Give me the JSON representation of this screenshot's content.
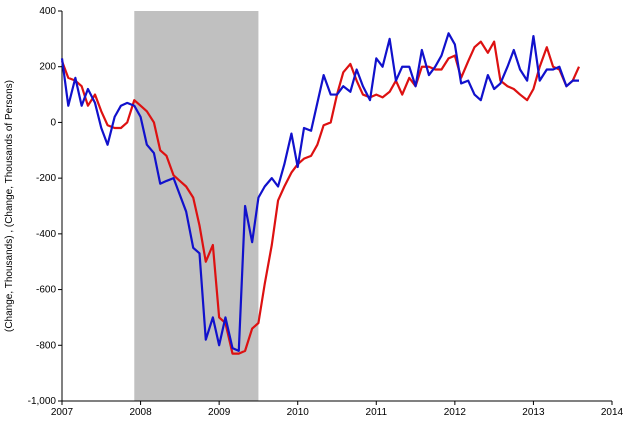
{
  "chart_data": {
    "type": "line",
    "ylabel": "(Change, Thousands) , (Change, Thousands of Persons)",
    "xlim": [
      2007,
      2014
    ],
    "xticks": [
      2007,
      2008,
      2009,
      2010,
      2011,
      2012,
      2013,
      2014
    ],
    "ylim": [
      -1000,
      400
    ],
    "yticks": [
      {
        "value": -1000,
        "label": "-1,000"
      },
      -800,
      -600,
      -400,
      -200,
      0,
      200,
      400
    ],
    "shading": [
      [
        2007.92,
        2009.5
      ]
    ],
    "shading_color": "#c0c0c0",
    "x": [
      2007.0,
      2007.08,
      2007.17,
      2007.25,
      2007.33,
      2007.42,
      2007.5,
      2007.58,
      2007.67,
      2007.75,
      2007.83,
      2007.92,
      2008.0,
      2008.08,
      2008.17,
      2008.25,
      2008.33,
      2008.42,
      2008.5,
      2008.58,
      2008.67,
      2008.75,
      2008.83,
      2008.92,
      2009.0,
      2009.08,
      2009.17,
      2009.25,
      2009.33,
      2009.42,
      2009.5,
      2009.58,
      2009.67,
      2009.75,
      2009.83,
      2009.92,
      2010.0,
      2010.08,
      2010.17,
      2010.25,
      2010.33,
      2010.42,
      2010.5,
      2010.58,
      2010.67,
      2010.75,
      2010.83,
      2010.92,
      2011.0,
      2011.08,
      2011.17,
      2011.25,
      2011.33,
      2011.42,
      2011.5,
      2011.58,
      2011.67,
      2011.75,
      2011.83,
      2011.92,
      2012.0,
      2012.08,
      2012.17,
      2012.25,
      2012.33,
      2012.42,
      2012.5,
      2012.58,
      2012.67,
      2012.75,
      2012.83,
      2012.92,
      2013.0,
      2013.08,
      2013.17,
      2013.25,
      2013.33,
      2013.42,
      2013.5,
      2013.58
    ],
    "series": [
      {
        "color": "#dd1111",
        "values": [
          220,
          160,
          150,
          130,
          60,
          100,
          40,
          -10,
          -20,
          -20,
          0,
          80,
          60,
          40,
          0,
          -100,
          -120,
          -190,
          -210,
          -230,
          -270,
          -370,
          -500,
          -440,
          -700,
          -720,
          -830,
          -830,
          -820,
          -740,
          -720,
          -580,
          -440,
          -280,
          -230,
          -180,
          -150,
          -130,
          -120,
          -80,
          -10,
          0,
          100,
          180,
          210,
          150,
          100,
          90,
          100,
          90,
          110,
          150,
          100,
          160,
          130,
          200,
          200,
          190,
          190,
          230,
          240,
          160,
          220,
          270,
          290,
          250,
          290,
          150,
          130,
          120,
          100,
          80,
          120,
          200,
          270,
          200,
          190,
          130,
          150,
          200
        ]
      },
      {
        "color": "#1111cc",
        "values": [
          230,
          60,
          160,
          60,
          120,
          70,
          -20,
          -80,
          20,
          60,
          70,
          60,
          20,
          -80,
          -110,
          -220,
          -210,
          -200,
          -260,
          -320,
          -450,
          -470,
          -780,
          -700,
          -800,
          -700,
          -810,
          -820,
          -300,
          -430,
          -270,
          -230,
          -200,
          -230,
          -150,
          -40,
          -160,
          -20,
          -30,
          70,
          170,
          100,
          100,
          130,
          110,
          190,
          130,
          80,
          230,
          200,
          300,
          150,
          200,
          200,
          130,
          260,
          170,
          200,
          240,
          320,
          280,
          140,
          150,
          100,
          80,
          170,
          120,
          140,
          200,
          260,
          190,
          150,
          310,
          150,
          190,
          190,
          200,
          130,
          150,
          150
        ]
      }
    ]
  }
}
